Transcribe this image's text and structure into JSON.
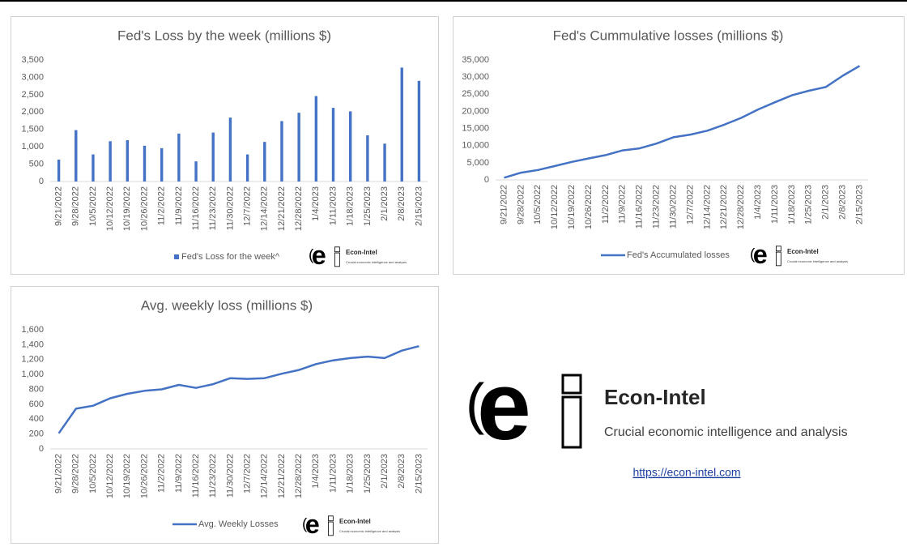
{
  "chart_data": [
    {
      "type": "bar",
      "title": "Fed's Loss by the week (millions $)",
      "categories": [
        "9/21/2022",
        "9/28/2022",
        "10/5/2022",
        "10/12/2022",
        "10/19/2022",
        "10/26/2022",
        "11/2/2022",
        "11/9/2022",
        "11/16/2022",
        "11/23/2022",
        "11/30/2022",
        "12/7/2022",
        "12/14/2022",
        "12/21/2022",
        "12/28/2022",
        "1/4/2023",
        "1/11/2023",
        "1/18/2023",
        "1/25/2023",
        "2/1/2023",
        "2/8/2023",
        "2/15/2023"
      ],
      "series": [
        {
          "name": "Fed's Loss for the week^",
          "color": "#4472c4",
          "values": [
            630,
            1480,
            780,
            1160,
            1190,
            1030,
            960,
            1380,
            580,
            1410,
            1840,
            780,
            1140,
            1740,
            1980,
            2460,
            2120,
            2020,
            1330,
            1090,
            3280,
            2900
          ]
        }
      ],
      "ylim": [
        0,
        3500
      ],
      "yticks": [
        0,
        500,
        {
          "value": 1000,
          "label": "1,000"
        },
        {
          "value": 1500,
          "label": "1,500"
        },
        {
          "value": 2000,
          "label": "2,000"
        },
        {
          "value": 2500,
          "label": "2,500"
        },
        {
          "value": 3000,
          "label": "3,000"
        },
        {
          "value": 3500,
          "label": "3,500"
        }
      ],
      "grid": false
    },
    {
      "type": "line",
      "title": "Fed's Cummulative losses (millions $)",
      "categories": [
        "9/21/2022",
        "9/28/2022",
        "10/5/2022",
        "10/12/2022",
        "10/19/2022",
        "10/26/2022",
        "11/2/2022",
        "11/9/2022",
        "11/16/2022",
        "11/23/2022",
        "11/30/2022",
        "12/7/2022",
        "12/14/2022",
        "12/21/2022",
        "12/28/2022",
        "1/4/2023",
        "1/11/2023",
        "1/18/2023",
        "1/25/2023",
        "2/1/2023",
        "2/8/2023",
        "2/15/2023"
      ],
      "series": [
        {
          "name": "Fed's Accumulated losses",
          "color": "#4472c4",
          "values": [
            630,
            2110,
            2890,
            4050,
            5240,
            6270,
            7230,
            8610,
            9190,
            10600,
            12440,
            13220,
            14360,
            16100,
            18080,
            20540,
            22660,
            24680,
            26010,
            27100,
            30380,
            33280
          ]
        }
      ],
      "ylim": [
        0,
        35000
      ],
      "yticks": [
        0,
        {
          "value": 5000,
          "label": "5,000"
        },
        {
          "value": 10000,
          "label": "10,000"
        },
        {
          "value": 15000,
          "label": "15,000"
        },
        {
          "value": 20000,
          "label": "20,000"
        },
        {
          "value": 25000,
          "label": "25,000"
        },
        {
          "value": 30000,
          "label": "30,000"
        },
        {
          "value": 35000,
          "label": "35,000"
        }
      ],
      "grid": false
    },
    {
      "type": "line",
      "title": "Avg. weekly loss (millions $)",
      "categories": [
        "9/21/2022",
        "9/28/2022",
        "10/5/2022",
        "10/12/2022",
        "10/19/2022",
        "10/26/2022",
        "11/2/2022",
        "11/9/2022",
        "11/16/2022",
        "11/23/2022",
        "11/30/2022",
        "12/7/2022",
        "12/14/2022",
        "12/21/2022",
        "12/28/2022",
        "1/4/2023",
        "1/11/2023",
        "1/18/2023",
        "1/25/2023",
        "2/1/2023",
        "2/8/2023",
        "2/15/2023"
      ],
      "series": [
        {
          "name": "Avg. Weekly Losses",
          "color": "#4472c4",
          "values": [
            210,
            540,
            580,
            680,
            740,
            780,
            800,
            860,
            820,
            870,
            950,
            940,
            950,
            1010,
            1060,
            1140,
            1190,
            1220,
            1240,
            1220,
            1320,
            1380
          ]
        }
      ],
      "ylim": [
        0,
        1600
      ],
      "yticks": [
        0,
        200,
        400,
        600,
        800,
        {
          "value": 1000,
          "label": "1,000"
        },
        {
          "value": 1200,
          "label": "1,200"
        },
        {
          "value": 1400,
          "label": "1,400"
        },
        {
          "value": 1600,
          "label": "1,600"
        }
      ],
      "grid": false
    }
  ],
  "branding": {
    "name": "Econ-Intel",
    "tagline": "Crucial economic intelligence and analysis",
    "url": "https://econ-intel.com"
  }
}
